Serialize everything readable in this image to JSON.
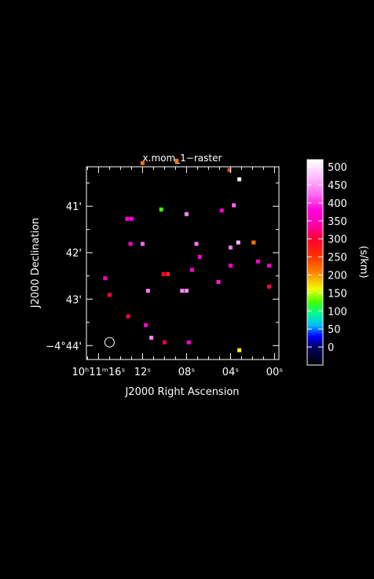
{
  "chart_data": {
    "type": "scatter",
    "title": "x.mom_1−raster",
    "xlabel": "J2000 Right Ascension",
    "ylabel": "J2000 Declination",
    "x_ticks": [
      {
        "label": "10ʰ11ᵐ16ˢ",
        "value": 16
      },
      {
        "label": "12ˢ",
        "value": 12
      },
      {
        "label": "08ˢ",
        "value": 8
      },
      {
        "label": "04ˢ",
        "value": 4
      },
      {
        "label": "00ˢ",
        "value": 0
      }
    ],
    "y_ticks": [
      {
        "label": "41'",
        "value": 41
      },
      {
        "label": "42'",
        "value": 42
      },
      {
        "label": "43'",
        "value": 43
      },
      {
        "label": "−4°44'",
        "value": 44
      }
    ],
    "x_range": [
      17.1,
      -0.4
    ],
    "y_range": [
      40.15,
      44.3
    ],
    "beam_marker": {
      "ra_s": 15.0,
      "dec_arcmin": 43.93
    },
    "colorbar": {
      "label": "(s/km)",
      "min": -50,
      "max": 520,
      "tick_labels": [
        "0",
        "50",
        "100",
        "150",
        "200",
        "250",
        "300",
        "350",
        "400",
        "450",
        "500"
      ],
      "tick_values": [
        0,
        50,
        100,
        150,
        200,
        250,
        300,
        350,
        400,
        450,
        500
      ],
      "stops": [
        {
          "v": -50,
          "color": "#000000"
        },
        {
          "v": 0,
          "color": "#000066"
        },
        {
          "v": 30,
          "color": "#0000ff"
        },
        {
          "v": 60,
          "color": "#00bbff"
        },
        {
          "v": 95,
          "color": "#00ff88"
        },
        {
          "v": 125,
          "color": "#44ff00"
        },
        {
          "v": 160,
          "color": "#eeff00"
        },
        {
          "v": 205,
          "color": "#ff8800"
        },
        {
          "v": 250,
          "color": "#ff3300"
        },
        {
          "v": 300,
          "color": "#ff0033"
        },
        {
          "v": 340,
          "color": "#ff00aa"
        },
        {
          "v": 380,
          "color": "#ff00dd"
        },
        {
          "v": 420,
          "color": "#ff66ee"
        },
        {
          "v": 470,
          "color": "#ffbbff"
        },
        {
          "v": 520,
          "color": "#ffffff"
        }
      ]
    },
    "points": [
      {
        "ra": 12.0,
        "dec": 40.07,
        "v": 220
      },
      {
        "ra": 8.9,
        "dec": 40.02,
        "v": 215
      },
      {
        "ra": 4.1,
        "dec": 40.22,
        "v": 240
      },
      {
        "ra": 3.2,
        "dec": 40.42,
        "v": 510
      },
      {
        "ra": 10.3,
        "dec": 41.07,
        "v": 125
      },
      {
        "ra": 8.0,
        "dec": 41.17,
        "v": 440
      },
      {
        "ra": 4.8,
        "dec": 41.09,
        "v": 370
      },
      {
        "ra": 3.7,
        "dec": 40.98,
        "v": 420
      },
      {
        "ra": 13.4,
        "dec": 41.27,
        "v": 375
      },
      {
        "ra": 13.0,
        "dec": 41.27,
        "v": 375
      },
      {
        "ra": 3.3,
        "dec": 41.78,
        "v": 470
      },
      {
        "ra": 1.9,
        "dec": 41.78,
        "v": 215
      },
      {
        "ra": 13.1,
        "dec": 41.81,
        "v": 375
      },
      {
        "ra": 12.0,
        "dec": 41.81,
        "v": 420
      },
      {
        "ra": 7.1,
        "dec": 41.81,
        "v": 430
      },
      {
        "ra": 4.0,
        "dec": 41.89,
        "v": 430
      },
      {
        "ra": 6.8,
        "dec": 42.09,
        "v": 370
      },
      {
        "ra": 1.5,
        "dec": 42.19,
        "v": 370
      },
      {
        "ra": 0.5,
        "dec": 42.28,
        "v": 370
      },
      {
        "ra": 4.0,
        "dec": 42.28,
        "v": 370
      },
      {
        "ra": 7.5,
        "dec": 42.37,
        "v": 370
      },
      {
        "ra": 10.1,
        "dec": 42.46,
        "v": 300
      },
      {
        "ra": 9.7,
        "dec": 42.46,
        "v": 260
      },
      {
        "ra": 15.4,
        "dec": 42.55,
        "v": 340
      },
      {
        "ra": 5.1,
        "dec": 42.63,
        "v": 390
      },
      {
        "ra": 0.5,
        "dec": 42.73,
        "v": 310
      },
      {
        "ra": 8.0,
        "dec": 42.82,
        "v": 440
      },
      {
        "ra": 8.4,
        "dec": 42.82,
        "v": 440
      },
      {
        "ra": 11.5,
        "dec": 42.82,
        "v": 430
      },
      {
        "ra": 15.0,
        "dec": 42.91,
        "v": 305
      },
      {
        "ra": 13.3,
        "dec": 43.37,
        "v": 305
      },
      {
        "ra": 11.7,
        "dec": 43.56,
        "v": 370
      },
      {
        "ra": 11.2,
        "dec": 43.83,
        "v": 440
      },
      {
        "ra": 10.0,
        "dec": 43.93,
        "v": 305
      },
      {
        "ra": 7.8,
        "dec": 43.93,
        "v": 370
      },
      {
        "ra": 3.2,
        "dec": 44.1,
        "v": 160
      }
    ]
  }
}
